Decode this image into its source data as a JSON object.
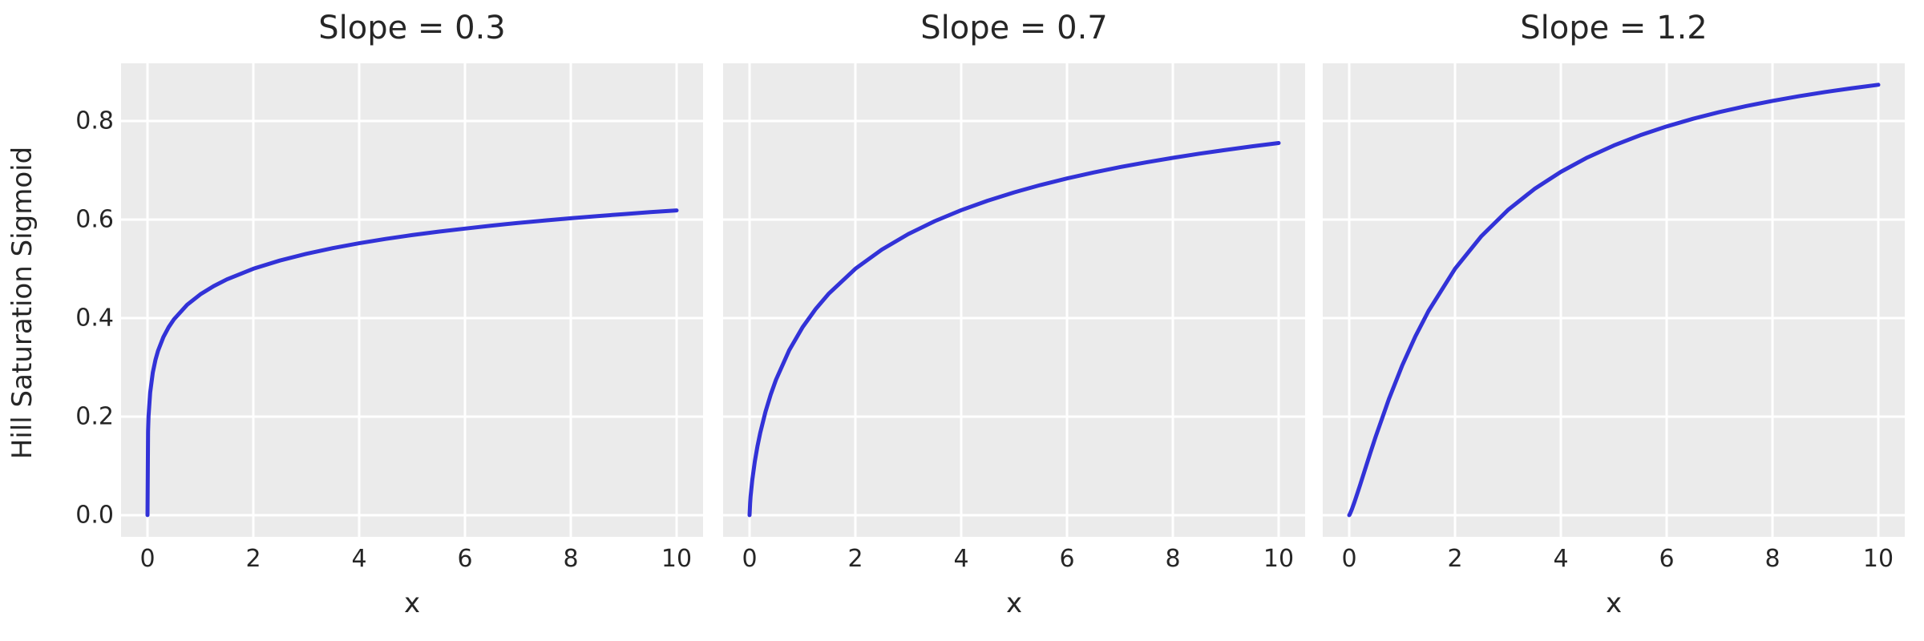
{
  "chart_data": {
    "type": "line",
    "figure_kind": "small-multiples",
    "ylabel": "Hill Saturation Sigmoid",
    "xlabel": "x",
    "xticks": [
      0,
      2,
      4,
      6,
      8,
      10
    ],
    "xtick_labels": [
      "0",
      "2",
      "4",
      "6",
      "8",
      "10"
    ],
    "yticks": [
      0.0,
      0.2,
      0.4,
      0.6,
      0.8
    ],
    "ytick_labels": [
      "0.0",
      "0.2",
      "0.4",
      "0.6",
      "0.8"
    ],
    "xlim": [
      -0.5,
      10.5
    ],
    "ylim": [
      -0.044,
      0.917
    ],
    "grid": true,
    "legend": false,
    "colors": {
      "line": "#3232d7",
      "plot_background": "#ebebeb",
      "grid": "#ffffff",
      "text": "#262626",
      "figure_background": "#ffffff"
    },
    "x_samples": [
      0,
      0.01,
      0.02,
      0.05,
      0.1,
      0.15,
      0.2,
      0.3,
      0.4,
      0.5,
      0.75,
      1,
      1.25,
      1.5,
      2,
      2.5,
      3,
      3.5,
      4,
      4.5,
      5,
      5.5,
      6,
      6.5,
      7,
      7.5,
      8,
      8.5,
      9,
      9.5,
      10
    ],
    "panels": [
      {
        "title": "Slope = 0.3",
        "slope": 0.3,
        "y": [
          0,
          0.1695,
          0.2008,
          0.2485,
          0.2893,
          0.315,
          0.3339,
          0.3614,
          0.3816,
          0.3975,
          0.427,
          0.4482,
          0.4648,
          0.4784,
          0.5,
          0.5167,
          0.5304,
          0.5419,
          0.5518,
          0.5605,
          0.5683,
          0.5753,
          0.5816,
          0.5875,
          0.5929,
          0.5979,
          0.6025,
          0.6069,
          0.611,
          0.6148,
          0.6184
        ]
      },
      {
        "title": "Slope = 0.7",
        "slope": 0.7,
        "y": [
          0,
          0.0239,
          0.0383,
          0.0703,
          0.1094,
          0.1402,
          0.1663,
          0.2095,
          0.2448,
          0.2748,
          0.3348,
          0.381,
          0.4185,
          0.4498,
          0.5,
          0.539,
          0.5705,
          0.5967,
          0.619,
          0.6382,
          0.655,
          0.67,
          0.6833,
          0.6953,
          0.7062,
          0.7161,
          0.7252,
          0.7336,
          0.7413,
          0.7485,
          0.7552
        ]
      },
      {
        "title": "Slope = 1.2",
        "slope": 1.2,
        "y": [
          0,
          0.0017,
          0.004,
          0.0118,
          0.0267,
          0.0428,
          0.0593,
          0.0931,
          0.1266,
          0.1593,
          0.2356,
          0.3033,
          0.3626,
          0.4146,
          0.5,
          0.5665,
          0.6193,
          0.6619,
          0.6967,
          0.7258,
          0.7502,
          0.771,
          0.7889,
          0.8045,
          0.8181,
          0.8301,
          0.8407,
          0.8502,
          0.8588,
          0.8664,
          0.8734
        ]
      }
    ]
  }
}
